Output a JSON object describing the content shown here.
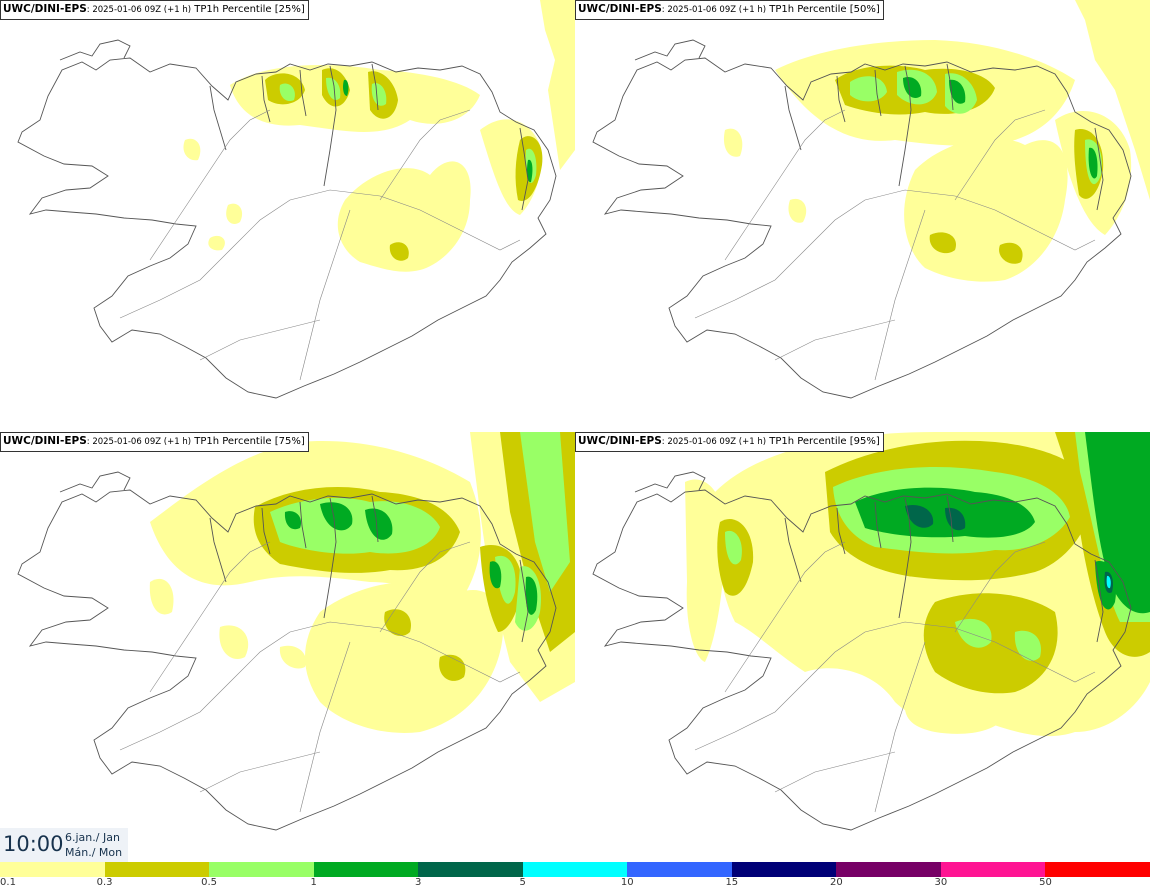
{
  "panels": [
    {
      "model": "UWC/DINI-EPS",
      "run": ": 2025-01-06 09Z (+1 h)",
      "product": " TP1h Percentile [25%]",
      "percentile": 25
    },
    {
      "model": "UWC/DINI-EPS",
      "run": ": 2025-01-06 09Z (+1 h)",
      "product": " TP1h Percentile [50%]",
      "percentile": 50
    },
    {
      "model": "UWC/DINI-EPS",
      "run": ": 2025-01-06 09Z (+1 h)",
      "product": " TP1h Percentile [75%]",
      "percentile": 75
    },
    {
      "model": "UWC/DINI-EPS",
      "run": ": 2025-01-06 09Z (+1 h)",
      "product": " TP1h Percentile [95%]",
      "percentile": 95
    }
  ],
  "valid_time": {
    "time": "10:00",
    "date_line1": "6.jan./ Jan",
    "date_line2": "Mán./ Mon"
  },
  "legend": {
    "ticks": [
      "0.1",
      "0.3",
      "0.5",
      "1",
      "3",
      "5",
      "10",
      "15",
      "20",
      "30",
      "50"
    ],
    "colors": [
      "#ffff99",
      "#cccc00",
      "#99ff66",
      "#00aa22",
      "#00664a",
      "#00ffff",
      "#3366ff",
      "#000077",
      "#770066",
      "#ff1493",
      "#ff0000"
    ]
  },
  "map_colors": {
    "land_outline": "#555555",
    "roads": "#888888"
  }
}
